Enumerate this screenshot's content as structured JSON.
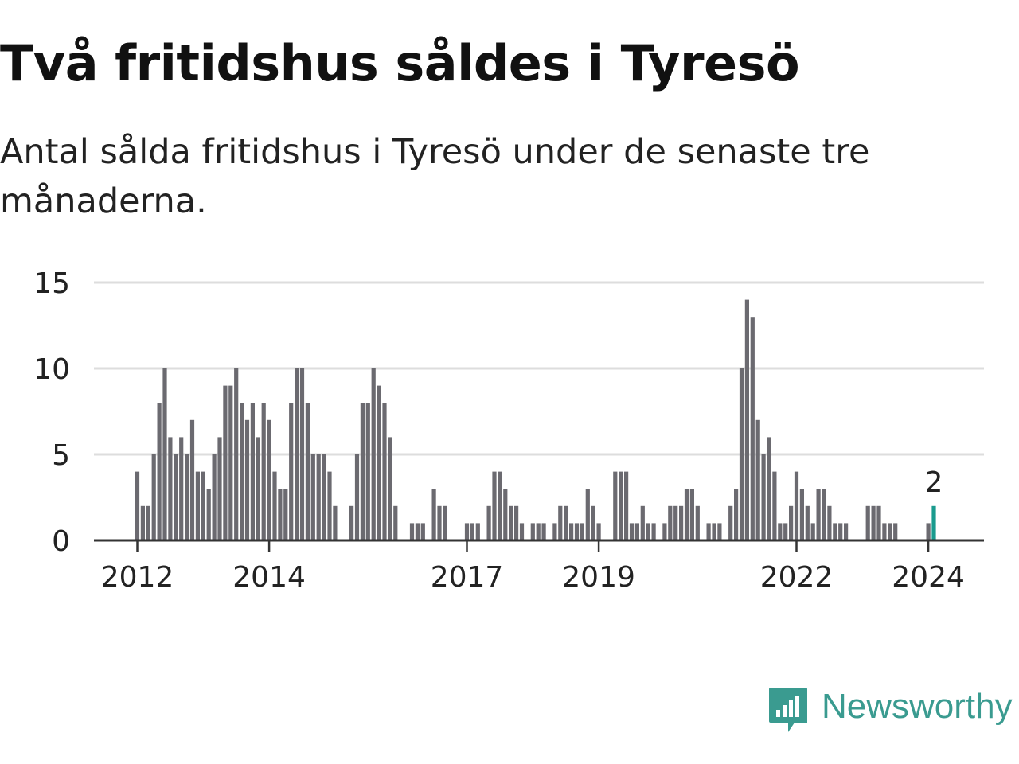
{
  "header": {
    "title": "Två fritidshus såldes i Tyresö",
    "subtitle": "Antal sålda fritidshus i Tyresö under de senaste tre månaderna."
  },
  "brand": {
    "name": "Newsworthy",
    "icon": "newsworthy-bar-chart-logo-icon",
    "color": "#3a9b90"
  },
  "colors": {
    "bar": "#6b6a70",
    "highlight": "#1a9b8e",
    "grid": "#dddddd",
    "axis": "#333333",
    "text": "#222222"
  },
  "chart_data": {
    "type": "bar",
    "title": "",
    "xlabel": "",
    "ylabel": "",
    "ylim": [
      0,
      15
    ],
    "y_ticks": [
      "0",
      "5",
      "10",
      "15"
    ],
    "grid": true,
    "x_ticks": [
      "2012",
      "2014",
      "2017",
      "2019",
      "2022",
      "2024"
    ],
    "x_tick_index": [
      0,
      24,
      60,
      84,
      120,
      144
    ],
    "highlight_label": "2",
    "categories": [
      "2012-01",
      "2012-02",
      "2012-03",
      "2012-04",
      "2012-05",
      "2012-06",
      "2012-07",
      "2012-08",
      "2012-09",
      "2012-10",
      "2012-11",
      "2012-12",
      "2013-01",
      "2013-02",
      "2013-03",
      "2013-04",
      "2013-05",
      "2013-06",
      "2013-07",
      "2013-08",
      "2013-09",
      "2013-10",
      "2013-11",
      "2013-12",
      "2014-01",
      "2014-02",
      "2014-03",
      "2014-04",
      "2014-05",
      "2014-06",
      "2014-07",
      "2014-08",
      "2014-09",
      "2014-10",
      "2014-11",
      "2014-12",
      "2015-01",
      "2015-02",
      "2015-03",
      "2015-04",
      "2015-05",
      "2015-06",
      "2015-07",
      "2015-08",
      "2015-09",
      "2015-10",
      "2015-11",
      "2015-12",
      "2016-01",
      "2016-02",
      "2016-03",
      "2016-04",
      "2016-05",
      "2016-06",
      "2016-07",
      "2016-08",
      "2016-09",
      "2016-10",
      "2016-11",
      "2016-12",
      "2017-01",
      "2017-02",
      "2017-03",
      "2017-04",
      "2017-05",
      "2017-06",
      "2017-07",
      "2017-08",
      "2017-09",
      "2017-10",
      "2017-11",
      "2017-12",
      "2018-01",
      "2018-02",
      "2018-03",
      "2018-04",
      "2018-05",
      "2018-06",
      "2018-07",
      "2018-08",
      "2018-09",
      "2018-10",
      "2018-11",
      "2018-12",
      "2019-01",
      "2019-02",
      "2019-03",
      "2019-04",
      "2019-05",
      "2019-06",
      "2019-07",
      "2019-08",
      "2019-09",
      "2019-10",
      "2019-11",
      "2019-12",
      "2020-01",
      "2020-02",
      "2020-03",
      "2020-04",
      "2020-05",
      "2020-06",
      "2020-07",
      "2020-08",
      "2020-09",
      "2020-10",
      "2020-11",
      "2020-12",
      "2021-01",
      "2021-02",
      "2021-03",
      "2021-04",
      "2021-05",
      "2021-06",
      "2021-07",
      "2021-08",
      "2021-09",
      "2021-10",
      "2021-11",
      "2021-12",
      "2022-01",
      "2022-02",
      "2022-03",
      "2022-04",
      "2022-05",
      "2022-06",
      "2022-07",
      "2022-08",
      "2022-09",
      "2022-10",
      "2022-11",
      "2022-12",
      "2023-01",
      "2023-02",
      "2023-03",
      "2023-04",
      "2023-05",
      "2023-06",
      "2023-07",
      "2023-08",
      "2023-09",
      "2023-10",
      "2023-11",
      "2023-12",
      "2024-01",
      "2024-02"
    ],
    "values": [
      4,
      2,
      2,
      5,
      8,
      10,
      6,
      5,
      6,
      5,
      7,
      4,
      4,
      3,
      5,
      6,
      9,
      9,
      10,
      8,
      7,
      8,
      6,
      8,
      7,
      4,
      3,
      3,
      8,
      10,
      10,
      8,
      5,
      5,
      5,
      4,
      2,
      0,
      0,
      2,
      5,
      8,
      8,
      10,
      9,
      8,
      6,
      2,
      0,
      0,
      1,
      1,
      1,
      0,
      3,
      2,
      2,
      0,
      0,
      0,
      1,
      1,
      1,
      0,
      2,
      4,
      4,
      3,
      2,
      2,
      1,
      0,
      1,
      1,
      1,
      0,
      1,
      2,
      2,
      1,
      1,
      1,
      3,
      2,
      1,
      0,
      0,
      4,
      4,
      4,
      1,
      1,
      2,
      1,
      1,
      0,
      1,
      2,
      2,
      2,
      3,
      3,
      2,
      0,
      1,
      1,
      1,
      0,
      2,
      3,
      10,
      14,
      13,
      7,
      5,
      6,
      4,
      1,
      1,
      2,
      4,
      3,
      2,
      1,
      3,
      3,
      2,
      1,
      1,
      1,
      0,
      0,
      0,
      2,
      2,
      2,
      1,
      1,
      1,
      0,
      0,
      0,
      0,
      0,
      1,
      2
    ]
  }
}
